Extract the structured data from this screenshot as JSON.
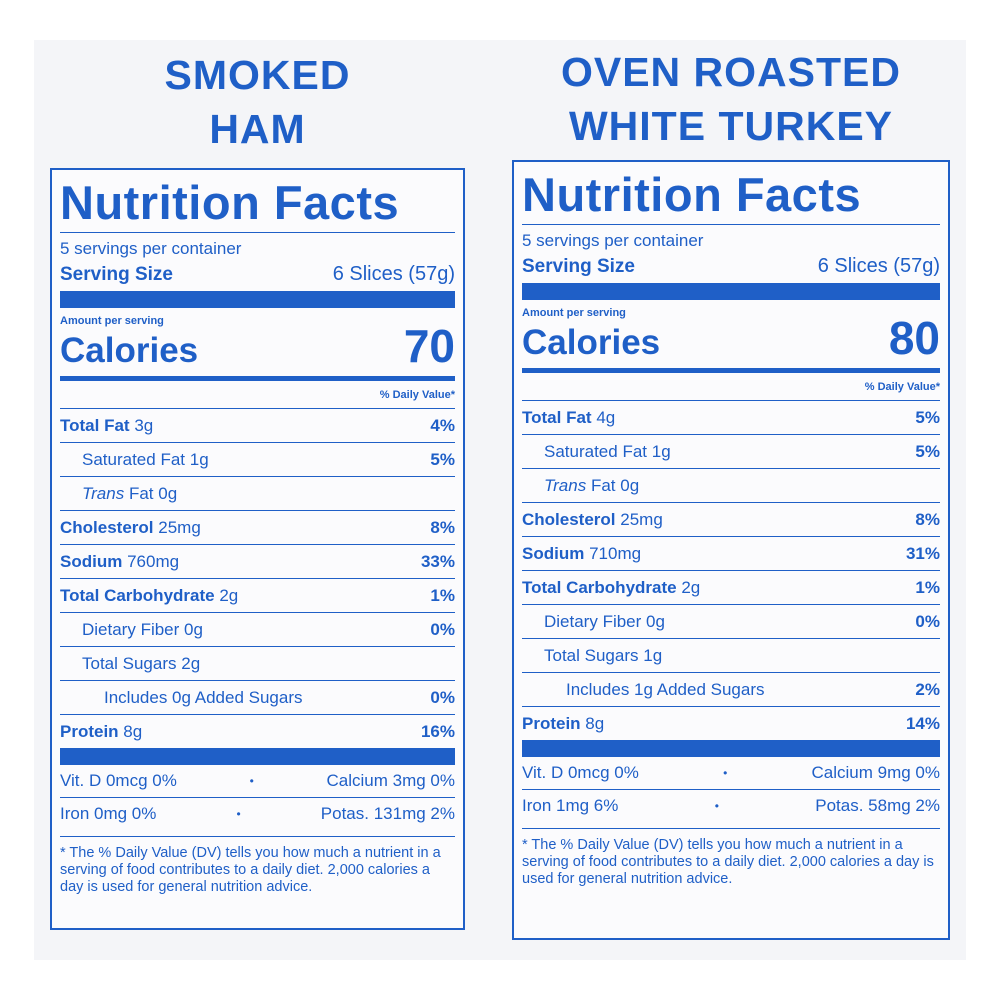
{
  "panels": [
    {
      "title": [
        "SMOKED",
        "HAM"
      ],
      "heading": "Nutrition Facts",
      "servings": "5 servings per container",
      "serving_size_label": "Serving Size",
      "serving_size_value": "6 Slices (57g)",
      "amount_per_serving": "Amount per serving",
      "calories_label": "Calories",
      "calories": "70",
      "daily_value_header": "% Daily Value*",
      "rows": [
        {
          "name": "Total Fat",
          "amount": "3g",
          "dv": "4%",
          "bold": true,
          "indent": 0
        },
        {
          "name": "Saturated Fat",
          "amount": "1g",
          "dv": "5%",
          "indent": 1
        },
        {
          "prefix": "Trans",
          "name": "Fat",
          "amount": "0g",
          "indent": 1
        },
        {
          "name": "Cholesterol",
          "amount": "25mg",
          "dv": "8%",
          "bold": true,
          "indent": 0
        },
        {
          "name": "Sodium",
          "amount": "760mg",
          "dv": "33%",
          "bold": true,
          "indent": 0
        },
        {
          "name": "Total Carbohydrate",
          "amount": "2g",
          "dv": "1%",
          "bold": true,
          "indent": 0
        },
        {
          "name": "Dietary Fiber",
          "amount": "0g",
          "dv": "0%",
          "indent": 1
        },
        {
          "name": "Total Sugars",
          "amount": "2g",
          "indent": 1
        },
        {
          "name": "Includes 0g Added Sugars",
          "dv": "0%",
          "indent": 2
        },
        {
          "name": "Protein",
          "amount": "8g",
          "dv": "16%",
          "bold": true,
          "indent": 0
        }
      ],
      "vitamins": [
        [
          "Vit. D 0mcg 0%",
          "Calcium 3mg 0%"
        ],
        [
          "Iron 0mg 0%",
          "Potas. 131mg 2%"
        ]
      ],
      "footnote": "* The % Daily Value (DV) tells you how much a nutrient in a serving of food contributes to a daily diet. 2,000 calories a day is used for general nutrition advice."
    },
    {
      "title": [
        "OVEN ROASTED",
        "WHITE TURKEY"
      ],
      "heading": "Nutrition Facts",
      "servings": "5 servings per container",
      "serving_size_label": "Serving Size",
      "serving_size_value": "6 Slices (57g)",
      "amount_per_serving": "Amount per serving",
      "calories_label": "Calories",
      "calories": "80",
      "daily_value_header": "% Daily Value*",
      "rows": [
        {
          "name": "Total Fat",
          "amount": "4g",
          "dv": "5%",
          "bold": true,
          "indent": 0
        },
        {
          "name": "Saturated Fat",
          "amount": "1g",
          "dv": "5%",
          "indent": 1
        },
        {
          "prefix": "Trans",
          "name": "Fat",
          "amount": "0g",
          "indent": 1
        },
        {
          "name": "Cholesterol",
          "amount": "25mg",
          "dv": "8%",
          "bold": true,
          "indent": 0
        },
        {
          "name": "Sodium",
          "amount": "710mg",
          "dv": "31%",
          "bold": true,
          "indent": 0
        },
        {
          "name": "Total Carbohydrate",
          "amount": "2g",
          "dv": "1%",
          "bold": true,
          "indent": 0
        },
        {
          "name": "Dietary Fiber",
          "amount": "0g",
          "dv": "0%",
          "indent": 1
        },
        {
          "name": "Total Sugars",
          "amount": "1g",
          "indent": 1
        },
        {
          "name": "Includes 1g Added Sugars",
          "dv": "2%",
          "indent": 2
        },
        {
          "name": "Protein",
          "amount": "8g",
          "dv": "14%",
          "bold": true,
          "indent": 0
        }
      ],
      "vitamins": [
        [
          "Vit. D 0mcg 0%",
          "Calcium 9mg 0%"
        ],
        [
          "Iron 1mg 6%",
          "Potas. 58mg 2%"
        ]
      ],
      "footnote": "* The % Daily Value (DV) tells you how much a nutrient in a serving of food contributes to a daily diet. 2,000 calories a day is used for general nutrition advice."
    }
  ]
}
